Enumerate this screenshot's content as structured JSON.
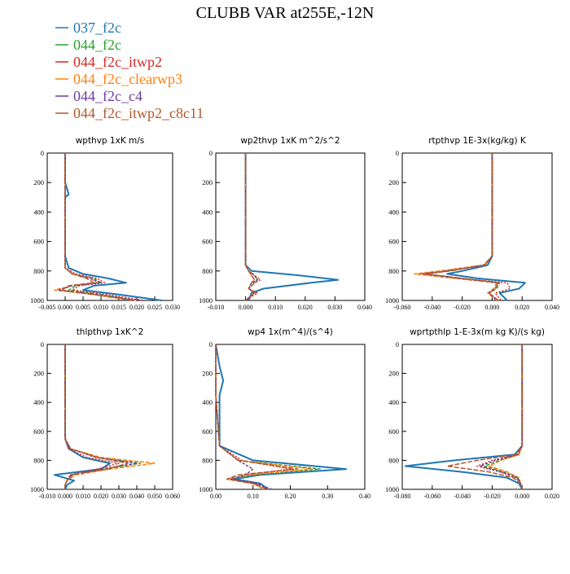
{
  "figure_title": "CLUBB VAR at255E,-12N",
  "colors": {
    "037_f2c": "#1f77b4",
    "044_f2c": "#2ca02c",
    "044_f2c_itwp2": "#d62728",
    "044_f2c_clearwp3": "#ff7f0e",
    "044_f2c_c4": "#6a3d9a",
    "044_f2c_itwp2_c8c11": "#b5562a"
  },
  "chart_data": [
    {
      "type": "line",
      "title": "wpthvp  1xK m/s",
      "xlim": [
        -0.005,
        0.03
      ],
      "ylim": [
        1000,
        0
      ],
      "xticks": [
        "-0.005",
        "0.000",
        "0.005",
        "0.010",
        "0.015",
        "0.020",
        "0.025",
        "0.030"
      ],
      "yticks": [
        "0",
        "200",
        "400",
        "600",
        "800",
        "1000"
      ],
      "y": [
        0,
        200,
        280,
        300,
        700,
        780,
        820,
        850,
        880,
        900,
        930,
        960,
        1000
      ],
      "series": [
        {
          "name": "037_f2c",
          "values": [
            0,
            0,
            0.001,
            0,
            0,
            0.001,
            0.005,
            0.012,
            0.017,
            0.008,
            0.005,
            0.015,
            0.027
          ]
        },
        {
          "name": "044_f2c",
          "values": [
            0,
            0,
            0,
            0,
            0,
            0,
            0.002,
            0.008,
            0.01,
            0.003,
            0.001,
            0.01,
            0.02
          ]
        },
        {
          "name": "044_f2c_itwp2",
          "values": [
            0,
            0,
            0,
            0,
            0,
            0,
            0.003,
            0.009,
            0.011,
            0.004,
            0.002,
            0.012,
            0.022
          ]
        },
        {
          "name": "044_f2c_clearwp3",
          "values": [
            0,
            0,
            0,
            0,
            0,
            0,
            0.002,
            0.007,
            0.009,
            0.002,
            -0.003,
            0.008,
            0.02
          ]
        },
        {
          "name": "044_f2c_c4",
          "values": [
            0,
            0,
            0,
            0,
            0,
            0,
            0.002,
            0.007,
            0.01,
            0.002,
            -0.002,
            0.009,
            0.02
          ]
        },
        {
          "name": "044_f2c_itwp2_c8c11",
          "values": [
            0,
            0,
            0,
            0,
            0,
            0,
            0.002,
            0.006,
            0.008,
            0.001,
            -0.001,
            0.008,
            0.019
          ]
        }
      ]
    },
    {
      "type": "line",
      "title": "wp2thvp  1xK m^2/s^2",
      "xlim": [
        -0.01,
        0.04
      ],
      "ylim": [
        1000,
        0
      ],
      "xticks": [
        "-0.010",
        "0.000",
        "0.010",
        "0.020",
        "0.030",
        "0.040"
      ],
      "yticks": [
        "0",
        "200",
        "400",
        "600",
        "800",
        "1000"
      ],
      "y": [
        0,
        600,
        760,
        800,
        830,
        860,
        880,
        920,
        950,
        1000
      ],
      "series": [
        {
          "name": "037_f2c",
          "values": [
            0,
            0,
            0,
            0.002,
            0.018,
            0.031,
            0.022,
            0.006,
            0.002,
            0.001
          ]
        },
        {
          "name": "044_f2c",
          "values": [
            0,
            0,
            0,
            0.001,
            0.003,
            0.004,
            0.003,
            0.001,
            0.003,
            0.0
          ]
        },
        {
          "name": "044_f2c_itwp2",
          "values": [
            0,
            0,
            0,
            0.001,
            0.003,
            0.005,
            0.003,
            0.001,
            0.004,
            0.0
          ]
        },
        {
          "name": "044_f2c_clearwp3",
          "values": [
            0,
            0,
            0,
            0.001,
            0.002,
            0.003,
            0.002,
            0.001,
            0.003,
            0.0
          ]
        },
        {
          "name": "044_f2c_c4",
          "values": [
            0,
            0,
            0,
            0.001,
            0.003,
            0.004,
            0.002,
            0.001,
            0.003,
            0.0
          ]
        },
        {
          "name": "044_f2c_itwp2_c8c11",
          "values": [
            0,
            0,
            0,
            0.001,
            0.002,
            0.003,
            0.002,
            0.001,
            0.003,
            0.0
          ]
        }
      ]
    },
    {
      "type": "line",
      "title": "rtpthvp  1E-3x(kg/kg) K",
      "xlim": [
        -0.06,
        0.04
      ],
      "ylim": [
        1000,
        0
      ],
      "xticks": [
        "-0.060",
        "-0.040",
        "-0.020",
        "0.000",
        "0.020",
        "0.040"
      ],
      "yticks": [
        "0",
        "200",
        "400",
        "600",
        "800",
        "1000"
      ],
      "y": [
        0,
        700,
        760,
        800,
        820,
        850,
        880,
        920,
        950,
        1000
      ],
      "series": [
        {
          "name": "037_f2c",
          "values": [
            0,
            0,
            -0.003,
            -0.02,
            -0.03,
            -0.01,
            0.022,
            0.018,
            0.005,
            0.01
          ]
        },
        {
          "name": "044_f2c",
          "values": [
            0,
            0,
            -0.005,
            -0.03,
            -0.045,
            -0.02,
            0.005,
            0.003,
            -0.002,
            0.004
          ]
        },
        {
          "name": "044_f2c_itwp2",
          "values": [
            0,
            0,
            -0.006,
            -0.032,
            -0.048,
            -0.022,
            0.01,
            0.012,
            0.002,
            0.006
          ]
        },
        {
          "name": "044_f2c_clearwp3",
          "values": [
            0,
            0,
            -0.006,
            -0.035,
            -0.052,
            -0.025,
            0.003,
            0.001,
            -0.003,
            0.003
          ]
        },
        {
          "name": "044_f2c_c4",
          "values": [
            0,
            0,
            -0.005,
            -0.03,
            -0.046,
            -0.022,
            0.004,
            0.002,
            -0.002,
            0.003
          ]
        },
        {
          "name": "044_f2c_itwp2_c8c11",
          "values": [
            0,
            0,
            -0.005,
            -0.028,
            -0.044,
            -0.02,
            0.004,
            0.002,
            -0.002,
            0.004
          ]
        }
      ]
    },
    {
      "type": "line",
      "title": "thlpthvp  1xK^2",
      "xlim": [
        -0.01,
        0.06
      ],
      "ylim": [
        1000,
        0
      ],
      "xticks": [
        "-0.010",
        "0.000",
        "0.010",
        "0.020",
        "0.030",
        "0.040",
        "0.050",
        "0.060"
      ],
      "yticks": [
        "0",
        "200",
        "400",
        "600",
        "800",
        "1000"
      ],
      "y": [
        0,
        650,
        720,
        780,
        820,
        860,
        900,
        940,
        970,
        1000
      ],
      "series": [
        {
          "name": "037_f2c",
          "values": [
            0,
            0,
            0.002,
            0.01,
            0.025,
            0.02,
            -0.006,
            0.005,
            0.001,
            0
          ]
        },
        {
          "name": "044_f2c",
          "values": [
            0,
            0,
            0.003,
            0.018,
            0.042,
            0.022,
            0.004,
            0.001,
            0,
            0
          ]
        },
        {
          "name": "044_f2c_itwp2",
          "values": [
            0,
            0,
            0.002,
            0.012,
            0.03,
            0.018,
            0.003,
            0.001,
            0,
            0
          ]
        },
        {
          "name": "044_f2c_clearwp3",
          "values": [
            0,
            0,
            0.003,
            0.02,
            0.05,
            0.025,
            0.006,
            0.001,
            0,
            0
          ]
        },
        {
          "name": "044_f2c_c4",
          "values": [
            0,
            0,
            0.003,
            0.017,
            0.04,
            0.02,
            0.004,
            0.001,
            0,
            0
          ]
        },
        {
          "name": "044_f2c_itwp2_c8c11",
          "values": [
            0,
            0,
            0.003,
            0.018,
            0.035,
            0.024,
            0.003,
            0.001,
            0,
            0
          ]
        }
      ]
    },
    {
      "type": "line",
      "title": "wp4  1x(m^4)/(s^4)",
      "xlim": [
        0,
        0.4
      ],
      "ylim": [
        1000,
        0
      ],
      "xticks": [
        "0.00",
        "0.10",
        "0.20",
        "0.30",
        "0.40"
      ],
      "yticks": [
        "0",
        "200",
        "400",
        "600",
        "800",
        "1000"
      ],
      "y": [
        0,
        150,
        250,
        350,
        700,
        800,
        860,
        900,
        930,
        960,
        1000
      ],
      "series": [
        {
          "name": "037_f2c",
          "values": [
            0,
            0.01,
            0.02,
            0.01,
            0.01,
            0.1,
            0.35,
            0.12,
            0.05,
            0.12,
            0.14
          ]
        },
        {
          "name": "044_f2c",
          "values": [
            0,
            0,
            0,
            0,
            0.01,
            0.06,
            0.28,
            0.1,
            0.04,
            0.1,
            0.13
          ]
        },
        {
          "name": "044_f2c_itwp2",
          "values": [
            0,
            0,
            0,
            0,
            0.01,
            0.07,
            0.2,
            0.08,
            0.04,
            0.11,
            0.14
          ]
        },
        {
          "name": "044_f2c_clearwp3",
          "values": [
            0,
            0,
            0,
            0,
            0.01,
            0.06,
            0.26,
            0.09,
            0.03,
            0.1,
            0.13
          ]
        },
        {
          "name": "044_f2c_c4",
          "values": [
            0,
            0,
            0,
            0,
            0.01,
            0.06,
            0.1,
            0.08,
            0.04,
            0.11,
            0.15
          ]
        },
        {
          "name": "044_f2c_itwp2_c8c11",
          "values": [
            0,
            0,
            0,
            0,
            0.01,
            0.06,
            0.22,
            0.06,
            0.03,
            0.1,
            0.14
          ]
        }
      ]
    },
    {
      "type": "line",
      "title": "wprtpthlp  1-E-3x(m kg K)/(s kg)",
      "xlim": [
        -0.08,
        0.02
      ],
      "ylim": [
        1000,
        0
      ],
      "xticks": [
        "-0.080",
        "-0.060",
        "-0.040",
        "-0.020",
        "0.000",
        "0.020"
      ],
      "yticks": [
        "0",
        "200",
        "400",
        "600",
        "800",
        "1000"
      ],
      "y": [
        0,
        700,
        760,
        800,
        840,
        880,
        920,
        960,
        1000
      ],
      "series": [
        {
          "name": "037_f2c",
          "values": [
            0,
            0,
            -0.005,
            -0.045,
            -0.078,
            -0.04,
            -0.01,
            -0.002,
            0
          ]
        },
        {
          "name": "044_f2c",
          "values": [
            0,
            0,
            -0.002,
            -0.015,
            -0.025,
            -0.012,
            -0.003,
            -0.001,
            0
          ]
        },
        {
          "name": "044_f2c_itwp2",
          "values": [
            0,
            0,
            -0.003,
            -0.02,
            -0.03,
            -0.015,
            -0.004,
            -0.001,
            0
          ]
        },
        {
          "name": "044_f2c_clearwp3",
          "values": [
            0,
            0,
            -0.002,
            -0.014,
            -0.022,
            -0.01,
            -0.002,
            -0.001,
            0
          ]
        },
        {
          "name": "044_f2c_c4",
          "values": [
            0,
            0,
            -0.003,
            -0.018,
            -0.028,
            -0.014,
            -0.003,
            -0.001,
            0
          ]
        },
        {
          "name": "044_f2c_itwp2_c8c11",
          "values": [
            0,
            0,
            -0.004,
            -0.03,
            -0.05,
            -0.022,
            -0.006,
            -0.001,
            0
          ]
        }
      ]
    }
  ],
  "legend": [
    {
      "label": "037_f2c",
      "color": "#1f77b4"
    },
    {
      "label": "044_f2c",
      "color": "#2ca02c"
    },
    {
      "label": "044_f2c_itwp2",
      "color": "#d62728"
    },
    {
      "label": "044_f2c_clearwp3",
      "color": "#ff7f0e"
    },
    {
      "label": "044_f2c_c4",
      "color": "#6a3d9a"
    },
    {
      "label": "044_f2c_itwp2_c8c11",
      "color": "#b5562a"
    }
  ]
}
